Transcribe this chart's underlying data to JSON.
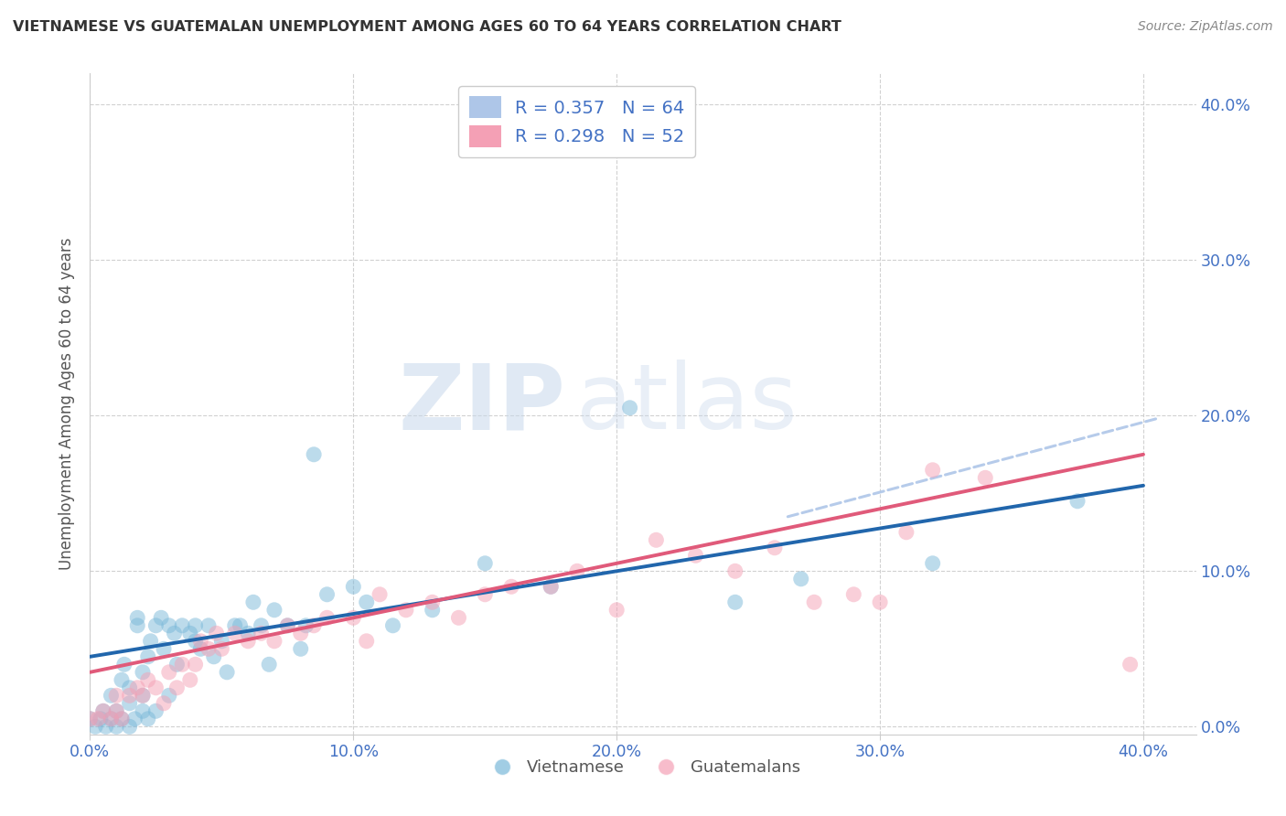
{
  "title": "VIETNAMESE VS GUATEMALAN UNEMPLOYMENT AMONG AGES 60 TO 64 YEARS CORRELATION CHART",
  "source": "Source: ZipAtlas.com",
  "ylabel": "Unemployment Among Ages 60 to 64 years",
  "xlim": [
    0.0,
    0.42
  ],
  "ylim": [
    -0.005,
    0.42
  ],
  "xticks": [
    0.0,
    0.1,
    0.2,
    0.3,
    0.4
  ],
  "yticks": [
    0.0,
    0.1,
    0.2,
    0.3,
    0.4
  ],
  "xticklabels": [
    "0.0%",
    "10.0%",
    "20.0%",
    "30.0%",
    "40.0%"
  ],
  "yticklabels": [
    "0.0%",
    "10.0%",
    "20.0%",
    "30.0%",
    "40.0%"
  ],
  "vietnamese_color": "#7ab8d9",
  "guatemalan_color": "#f4a0b5",
  "vietnamese_line_color": "#2166ac",
  "guatemalan_line_color": "#e05a7a",
  "dashed_line_color": "#aec6e8",
  "legend_box_blue": "#aec6e8",
  "legend_box_pink": "#f4a0b5",
  "R_vietnamese": 0.357,
  "N_vietnamese": 64,
  "R_guatemalan": 0.298,
  "N_guatemalan": 52,
  "watermark_zip": "ZIP",
  "watermark_atlas": "atlas",
  "background_color": "#ffffff",
  "grid_color": "#cccccc",
  "tick_color": "#4472c4",
  "title_color": "#333333",
  "axis_label_color": "#555555",
  "source_color": "#888888",
  "blue_line_start_y": 0.045,
  "blue_line_end_y": 0.155,
  "pink_line_start_y": 0.035,
  "pink_line_end_y": 0.175,
  "dashed_line_start_x": 0.265,
  "dashed_line_start_y": 0.135,
  "dashed_line_end_x": 0.405,
  "dashed_line_end_y": 0.198,
  "vietnamese_x": [
    0.0,
    0.002,
    0.004,
    0.005,
    0.006,
    0.008,
    0.008,
    0.01,
    0.01,
    0.012,
    0.012,
    0.013,
    0.015,
    0.015,
    0.015,
    0.017,
    0.018,
    0.018,
    0.02,
    0.02,
    0.02,
    0.022,
    0.022,
    0.023,
    0.025,
    0.025,
    0.027,
    0.028,
    0.03,
    0.03,
    0.032,
    0.033,
    0.035,
    0.038,
    0.04,
    0.04,
    0.042,
    0.045,
    0.047,
    0.05,
    0.052,
    0.055,
    0.057,
    0.06,
    0.062,
    0.065,
    0.068,
    0.07,
    0.075,
    0.08,
    0.082,
    0.085,
    0.09,
    0.1,
    0.105,
    0.115,
    0.13,
    0.15,
    0.175,
    0.205,
    0.245,
    0.27,
    0.32,
    0.375
  ],
  "vietnamese_y": [
    0.005,
    0.0,
    0.005,
    0.01,
    0.0,
    0.005,
    0.02,
    0.0,
    0.01,
    0.005,
    0.03,
    0.04,
    0.0,
    0.015,
    0.025,
    0.005,
    0.065,
    0.07,
    0.01,
    0.02,
    0.035,
    0.005,
    0.045,
    0.055,
    0.01,
    0.065,
    0.07,
    0.05,
    0.02,
    0.065,
    0.06,
    0.04,
    0.065,
    0.06,
    0.055,
    0.065,
    0.05,
    0.065,
    0.045,
    0.055,
    0.035,
    0.065,
    0.065,
    0.06,
    0.08,
    0.065,
    0.04,
    0.075,
    0.065,
    0.05,
    0.065,
    0.175,
    0.085,
    0.09,
    0.08,
    0.065,
    0.075,
    0.105,
    0.09,
    0.205,
    0.08,
    0.095,
    0.105,
    0.145
  ],
  "guatemalan_x": [
    0.0,
    0.003,
    0.005,
    0.008,
    0.01,
    0.01,
    0.012,
    0.015,
    0.018,
    0.02,
    0.022,
    0.025,
    0.028,
    0.03,
    0.033,
    0.035,
    0.038,
    0.04,
    0.042,
    0.045,
    0.048,
    0.05,
    0.055,
    0.06,
    0.065,
    0.07,
    0.075,
    0.08,
    0.085,
    0.09,
    0.1,
    0.105,
    0.11,
    0.12,
    0.13,
    0.14,
    0.15,
    0.16,
    0.175,
    0.185,
    0.2,
    0.215,
    0.23,
    0.245,
    0.26,
    0.275,
    0.29,
    0.3,
    0.31,
    0.32,
    0.34,
    0.395
  ],
  "guatemalan_y": [
    0.005,
    0.005,
    0.01,
    0.005,
    0.01,
    0.02,
    0.005,
    0.02,
    0.025,
    0.02,
    0.03,
    0.025,
    0.015,
    0.035,
    0.025,
    0.04,
    0.03,
    0.04,
    0.055,
    0.05,
    0.06,
    0.05,
    0.06,
    0.055,
    0.06,
    0.055,
    0.065,
    0.06,
    0.065,
    0.07,
    0.07,
    0.055,
    0.085,
    0.075,
    0.08,
    0.07,
    0.085,
    0.09,
    0.09,
    0.1,
    0.075,
    0.12,
    0.11,
    0.1,
    0.115,
    0.08,
    0.085,
    0.08,
    0.125,
    0.165,
    0.16,
    0.04
  ]
}
